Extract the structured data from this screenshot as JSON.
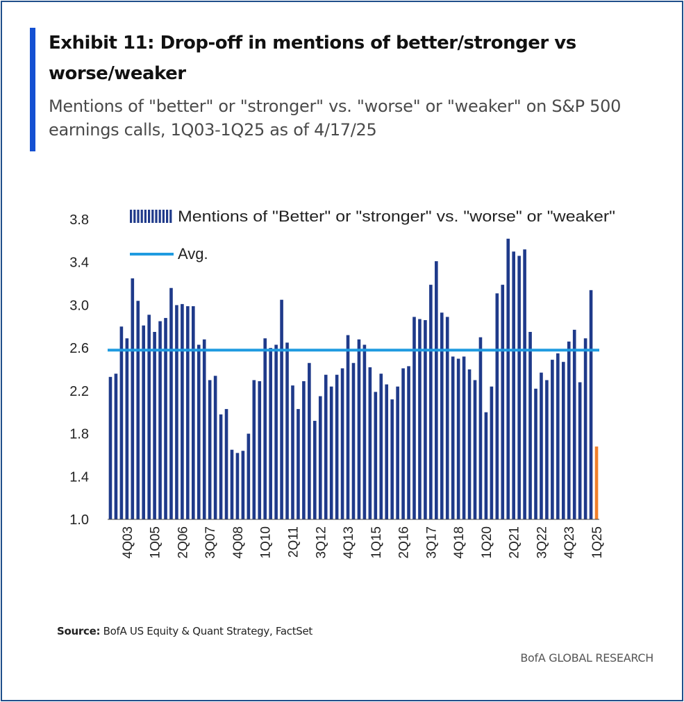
{
  "header": {
    "title": "Exhibit 11: Drop-off in mentions of better/stronger vs worse/weaker",
    "subtitle": "Mentions of \"better\" or \"stronger\" vs. \"worse\" or \"weaker\" on S&P 500 earnings calls, 1Q03-1Q25 as of 4/17/25"
  },
  "footer": {
    "source_label": "Source:",
    "source_text": "BofA US Equity & Quant Strategy, FactSet",
    "brand": "BofA GLOBAL RESEARCH"
  },
  "colors": {
    "accent": "#1450d2",
    "bar": "#1f3a8a",
    "last_bar": "#f07f2a",
    "avg_line": "#1f9be0"
  },
  "chart_data": {
    "type": "bar",
    "title": "",
    "xlabel": "",
    "ylabel": "",
    "ylim": [
      1.0,
      3.8
    ],
    "yticks": [
      "1.0",
      "1.4",
      "1.8",
      "2.2",
      "2.6",
      "3.0",
      "3.4",
      "3.8"
    ],
    "xtick_labels": [
      "4Q03",
      "1Q05",
      "2Q06",
      "3Q07",
      "4Q08",
      "1Q10",
      "2Q11",
      "3Q12",
      "4Q13",
      "1Q15",
      "2Q16",
      "3Q17",
      "4Q18",
      "1Q20",
      "2Q21",
      "3Q22",
      "4Q23",
      "1Q25"
    ],
    "categories": [
      "1Q03",
      "2Q03",
      "3Q03",
      "4Q03",
      "1Q04",
      "2Q04",
      "3Q04",
      "4Q04",
      "1Q05",
      "2Q05",
      "3Q05",
      "4Q05",
      "1Q06",
      "2Q06",
      "3Q06",
      "4Q06",
      "1Q07",
      "2Q07",
      "3Q07",
      "4Q07",
      "1Q08",
      "2Q08",
      "3Q08",
      "4Q08",
      "1Q09",
      "2Q09",
      "3Q09",
      "4Q09",
      "1Q10",
      "2Q10",
      "3Q10",
      "4Q10",
      "1Q11",
      "2Q11",
      "3Q11",
      "4Q11",
      "1Q12",
      "2Q12",
      "3Q12",
      "4Q12",
      "1Q13",
      "2Q13",
      "3Q13",
      "4Q13",
      "1Q14",
      "2Q14",
      "3Q14",
      "4Q14",
      "1Q15",
      "2Q15",
      "3Q15",
      "4Q15",
      "1Q16",
      "2Q16",
      "3Q16",
      "4Q16",
      "1Q17",
      "2Q17",
      "3Q17",
      "4Q17",
      "1Q18",
      "2Q18",
      "3Q18",
      "4Q18",
      "1Q19",
      "2Q19",
      "3Q19",
      "4Q19",
      "1Q20",
      "2Q20",
      "3Q20",
      "4Q20",
      "1Q21",
      "2Q21",
      "3Q21",
      "4Q21",
      "1Q22",
      "2Q22",
      "3Q22",
      "4Q22",
      "1Q23",
      "2Q23",
      "3Q23",
      "4Q23",
      "1Q24",
      "2Q24",
      "3Q24",
      "4Q24",
      "1Q25"
    ],
    "series": [
      {
        "name": "Mentions of \"Better\" or \"stronger\" vs. \"worse\" or \"weaker\"",
        "values": [
          2.33,
          2.36,
          2.8,
          2.69,
          3.25,
          3.04,
          2.81,
          2.91,
          2.75,
          2.85,
          2.88,
          3.16,
          3.0,
          3.01,
          2.99,
          2.99,
          2.63,
          2.68,
          2.3,
          2.34,
          1.98,
          2.03,
          1.65,
          1.62,
          1.64,
          1.8,
          2.3,
          2.29,
          2.69,
          2.6,
          2.63,
          3.05,
          2.65,
          2.25,
          2.03,
          2.29,
          2.46,
          1.92,
          2.15,
          2.35,
          2.24,
          2.35,
          2.41,
          2.72,
          2.46,
          2.68,
          2.63,
          2.42,
          2.19,
          2.36,
          2.26,
          2.12,
          2.24,
          2.41,
          2.43,
          2.89,
          2.87,
          2.86,
          3.19,
          3.41,
          2.93,
          2.89,
          2.52,
          2.5,
          2.52,
          2.4,
          2.3,
          2.7,
          2.0,
          2.24,
          3.11,
          3.19,
          3.62,
          3.5,
          3.46,
          3.52,
          2.75,
          2.22,
          2.37,
          2.3,
          2.49,
          2.55,
          2.47,
          2.66,
          2.77,
          2.28,
          2.69,
          3.14,
          1.68
        ]
      },
      {
        "name": "Avg.",
        "type": "line",
        "value": 2.58
      }
    ],
    "highlight_last": true,
    "legend_position": "top-left",
    "grid": false
  }
}
